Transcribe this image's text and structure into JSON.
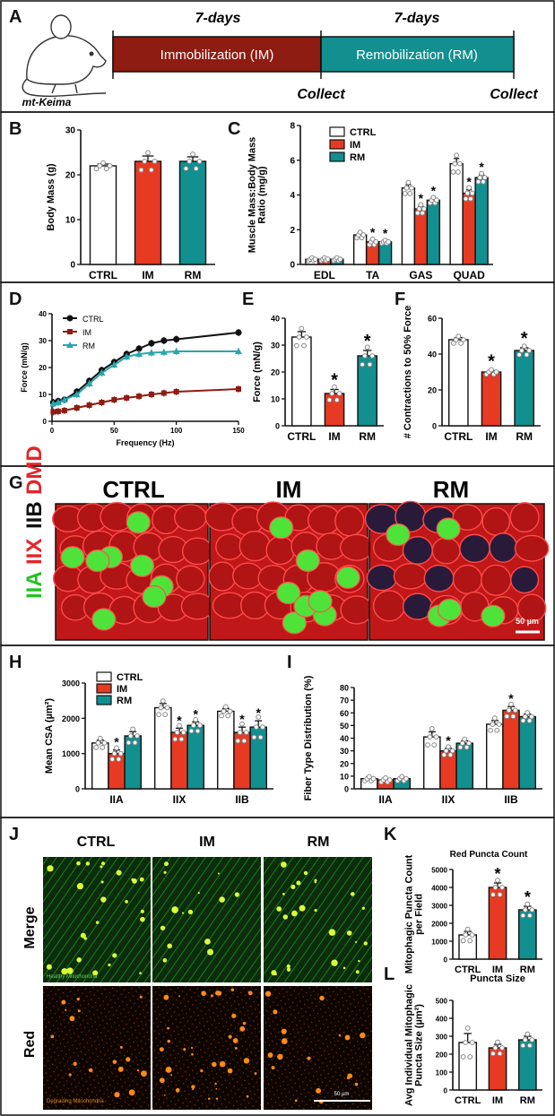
{
  "panel_letters": [
    "A",
    "B",
    "C",
    "D",
    "E",
    "F",
    "G",
    "H",
    "I",
    "J",
    "K",
    "L"
  ],
  "colors": {
    "ctrl": "#ffffff",
    "im": "#e63a22",
    "rm": "#128f8f",
    "im_dark": "#8e1c12",
    "rm_line": "#2aa6ad",
    "red": "#e4252a",
    "green": "#22c322",
    "frame": "#111111"
  },
  "timeline": {
    "mouse_label": "mt-Keima",
    "left_days": "7-days",
    "right_days": "7-days",
    "immob_label": "Immobilization (IM)",
    "remob_label": "Remobilization (RM)",
    "collect1": "Collect",
    "collect2": "Collect"
  },
  "micro": {
    "titles": [
      "CTRL",
      "IM",
      "RM"
    ],
    "side_labels": [
      "IIA",
      "IIX",
      "IIB",
      "DMD"
    ],
    "scale_bar": "50 µm"
  },
  "live": {
    "titles": [
      "CTRL",
      "IM",
      "RM"
    ],
    "row_labels": [
      "Merge",
      "Red"
    ],
    "merge_caption": "Healthy Mitochondria",
    "red_caption": "Degrading Mitochondria",
    "scale_bar": "50 µm"
  },
  "significance_mark": "*",
  "chart_data": [
    {
      "panel": "B",
      "type": "bar",
      "title": "",
      "ylabel": "Body Mass (g)",
      "categories": [
        "CTRL",
        "IM",
        "RM"
      ],
      "values": [
        22,
        23,
        23
      ],
      "errors": [
        0.4,
        1.2,
        1.0
      ],
      "ylim": [
        0,
        30
      ],
      "yticks": [
        0,
        10,
        20,
        30
      ],
      "significant": [
        false,
        false,
        false
      ]
    },
    {
      "panel": "C",
      "type": "bar",
      "ylabel": "Muscle Mass:Body Mass Ratio (mg/g)",
      "categories": [
        "EDL",
        "TA",
        "GAS",
        "QUAD"
      ],
      "ylim": [
        0,
        8
      ],
      "yticks": [
        0,
        2,
        4,
        6,
        8
      ],
      "legend": [
        "CTRL",
        "IM",
        "RM"
      ],
      "series": [
        {
          "name": "CTRL",
          "values": [
            0.3,
            1.7,
            4.4,
            5.8
          ],
          "errors": [
            0.05,
            0.1,
            0.2,
            0.3
          ],
          "significant": [
            false,
            false,
            false,
            false
          ]
        },
        {
          "name": "IM",
          "values": [
            0.3,
            1.3,
            3.2,
            4.1
          ],
          "errors": [
            0.05,
            0.1,
            0.15,
            0.2
          ],
          "significant": [
            false,
            true,
            true,
            true
          ]
        },
        {
          "name": "RM",
          "values": [
            0.3,
            1.3,
            3.7,
            5.0
          ],
          "errors": [
            0.05,
            0.05,
            0.1,
            0.15
          ],
          "significant": [
            false,
            true,
            true,
            true
          ]
        }
      ]
    },
    {
      "panel": "D",
      "type": "line",
      "xlabel": "Frequency (Hz)",
      "ylabel": "Force (mN/g)",
      "xlim": [
        0,
        150
      ],
      "ylim": [
        0,
        40
      ],
      "xticks": [
        0,
        50,
        100,
        150
      ],
      "yticks": [
        0,
        10,
        20,
        30,
        40
      ],
      "x": [
        1,
        5,
        10,
        20,
        30,
        40,
        50,
        60,
        70,
        80,
        90,
        100,
        150
      ],
      "series": [
        {
          "name": "CTRL",
          "marker": "circle",
          "values": [
            7,
            7.5,
            8,
            11,
            15,
            19,
            22,
            25,
            27,
            29,
            30,
            30.5,
            33
          ]
        },
        {
          "name": "IM",
          "marker": "square",
          "values": [
            3.5,
            3.7,
            4,
            5,
            6,
            7,
            8,
            8.7,
            9.3,
            10,
            10.5,
            11,
            12
          ]
        },
        {
          "name": "RM",
          "marker": "triangle",
          "values": [
            6.5,
            7,
            8,
            10,
            14,
            18,
            21,
            24,
            25,
            25.5,
            25.7,
            26,
            26
          ]
        }
      ]
    },
    {
      "panel": "E",
      "type": "bar",
      "ylabel": "Force (mN/g)",
      "categories": [
        "CTRL",
        "IM",
        "RM"
      ],
      "values": [
        33,
        12,
        26
      ],
      "errors": [
        2,
        1.5,
        2
      ],
      "ylim": [
        0,
        40
      ],
      "yticks": [
        0,
        10,
        20,
        30,
        40
      ],
      "significant": [
        false,
        true,
        true
      ]
    },
    {
      "panel": "F",
      "type": "bar",
      "ylabel": "# Contractions to 50% Force",
      "categories": [
        "CTRL",
        "IM",
        "RM"
      ],
      "values": [
        48,
        30,
        42
      ],
      "errors": [
        1.2,
        0.8,
        1.5
      ],
      "ylim": [
        0,
        60
      ],
      "yticks": [
        0,
        20,
        40,
        60
      ],
      "significant": [
        false,
        true,
        true
      ]
    },
    {
      "panel": "H",
      "type": "bar",
      "ylabel": "Mean CSA (µm²)",
      "categories": [
        "IIA",
        "IIX",
        "IIB"
      ],
      "ylim": [
        0,
        3000
      ],
      "yticks": [
        0,
        1000,
        2000,
        3000
      ],
      "legend": [
        "CTRL",
        "IM",
        "RM"
      ],
      "series": [
        {
          "name": "CTRL",
          "values": [
            1300,
            2300,
            2200
          ],
          "errors": [
            80,
            120,
            80
          ],
          "significant": [
            false,
            false,
            false
          ]
        },
        {
          "name": "IM",
          "values": [
            1000,
            1600,
            1600
          ],
          "errors": [
            100,
            120,
            150
          ],
          "significant": [
            true,
            true,
            true
          ]
        },
        {
          "name": "RM",
          "values": [
            1500,
            1800,
            1750
          ],
          "errors": [
            120,
            100,
            180
          ],
          "significant": [
            false,
            true,
            true
          ]
        }
      ]
    },
    {
      "panel": "I",
      "type": "bar",
      "ylabel": "Fiber Type Distribution (%)",
      "categories": [
        "IIA",
        "IIX",
        "IIB"
      ],
      "ylim": [
        0,
        80
      ],
      "yticks": [
        0,
        10,
        20,
        30,
        40,
        50,
        60,
        70,
        80
      ],
      "series": [
        {
          "name": "CTRL",
          "values": [
            8,
            41,
            51
          ],
          "errors": [
            1,
            4,
            3
          ],
          "significant": [
            false,
            false,
            false
          ]
        },
        {
          "name": "IM",
          "values": [
            7,
            30,
            62
          ],
          "errors": [
            1,
            2,
            3
          ],
          "significant": [
            false,
            true,
            true
          ]
        },
        {
          "name": "RM",
          "values": [
            8,
            36,
            57
          ],
          "errors": [
            1,
            2,
            2
          ],
          "significant": [
            false,
            false,
            false
          ]
        }
      ]
    },
    {
      "panel": "K",
      "type": "bar",
      "title": "Red Puncta Count",
      "xlabel": "Puncta Size",
      "ylabel": "Mitophagic Puncta Count per Field",
      "categories": [
        "CTRL",
        "IM",
        "RM"
      ],
      "values": [
        1350,
        4000,
        2750
      ],
      "errors": [
        200,
        250,
        200
      ],
      "ylim": [
        0,
        5000
      ],
      "yticks": [
        0,
        1000,
        2000,
        3000,
        4000,
        5000
      ],
      "significant": [
        false,
        true,
        true
      ]
    },
    {
      "panel": "L",
      "type": "bar",
      "ylabel": "Avg Individual Mitophagic Puncta Size (µm²)",
      "categories": [
        "CTRL",
        "IM",
        "RM"
      ],
      "values": [
        265,
        235,
        280
      ],
      "errors": [
        50,
        20,
        20
      ],
      "ylim": [
        0,
        500
      ],
      "yticks": [
        0,
        100,
        200,
        300,
        400,
        500
      ],
      "significant": [
        false,
        false,
        false
      ]
    }
  ]
}
